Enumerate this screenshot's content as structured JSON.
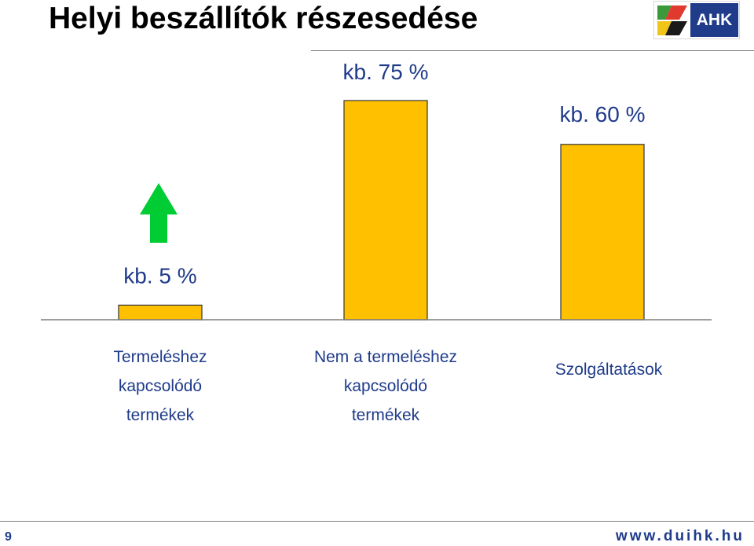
{
  "slide": {
    "title": "Helyi beszállítók részesedése",
    "page_number": "9",
    "url": "www.duihk.hu",
    "logo_text": "AHK"
  },
  "colors": {
    "bar_fill": "#ffc000",
    "bar_stroke": "#333333",
    "arrow_fill": "#00cc33",
    "text_blue": "#1f3b8a",
    "brand_blue": "#1f3b8a"
  },
  "chart_data": {
    "type": "bar",
    "title": "Helyi beszállítók részesedése",
    "categories": [
      "Termeléshez kapcsolódó termékek",
      "Nem a termeléshez kapcsolódó termékek",
      "Szolgáltatások"
    ],
    "category_lines": [
      [
        "Termeléshez",
        "kapcsolódó",
        "termékek"
      ],
      [
        "Nem a termeléshez",
        "kapcsolódó",
        "termékek"
      ],
      [
        "Szolgáltatások"
      ]
    ],
    "values": [
      5,
      75,
      60
    ],
    "data_labels": [
      "kb. 5 %",
      "kb. 75 %",
      "kb. 60 %"
    ],
    "ylim": [
      0,
      75
    ],
    "xlabel": "",
    "ylabel": "",
    "grid": false,
    "annotations": [
      "increasing trend arrow above first bar"
    ]
  }
}
